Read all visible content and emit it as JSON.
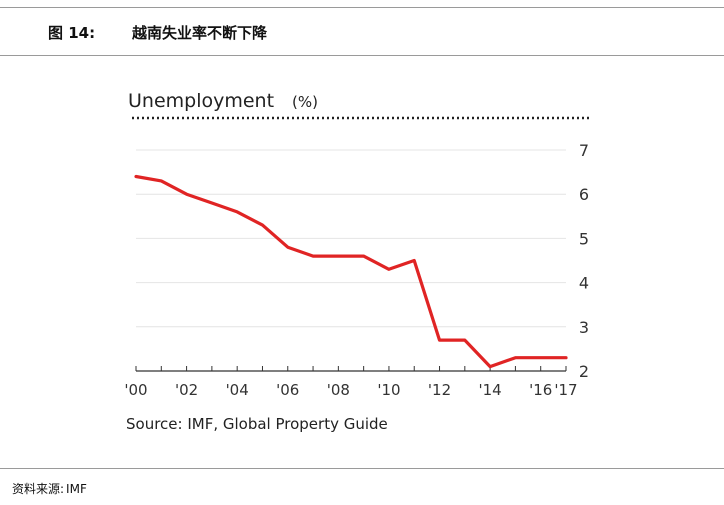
{
  "figure": {
    "label": "图 14:",
    "title": "越南失业率不断下降"
  },
  "chart_data": {
    "type": "line",
    "title": "Unemployment",
    "title_unit": "(%)",
    "x": [
      "2000",
      "2001",
      "2002",
      "2003",
      "2004",
      "2005",
      "2006",
      "2007",
      "2008",
      "2009",
      "2010",
      "2011",
      "2012",
      "2013",
      "2014",
      "2015",
      "2016",
      "2017"
    ],
    "x_tick_labels": [
      "'00",
      "'02",
      "'04",
      "'06",
      "'08",
      "'10",
      "'12",
      "'14",
      "'16",
      "'17"
    ],
    "x_tick_years": [
      2000,
      2002,
      2004,
      2006,
      2008,
      2010,
      2012,
      2014,
      2016,
      2017
    ],
    "series": [
      {
        "values": [
          6.4,
          6.3,
          6.0,
          5.8,
          5.6,
          5.3,
          4.8,
          4.6,
          4.6,
          4.6,
          4.3,
          4.5,
          2.7,
          2.7,
          2.1,
          2.3,
          2.3,
          2.3
        ],
        "color": "#e02424"
      }
    ],
    "y_ticks": [
      2,
      3,
      4,
      5,
      6,
      7
    ],
    "ylim": [
      2,
      7
    ],
    "grid": true,
    "y_axis_side": "right",
    "source": "Source: IMF, Global Property Guide"
  },
  "footer": {
    "source_label": "资料来源:",
    "source_value": "IMF"
  }
}
